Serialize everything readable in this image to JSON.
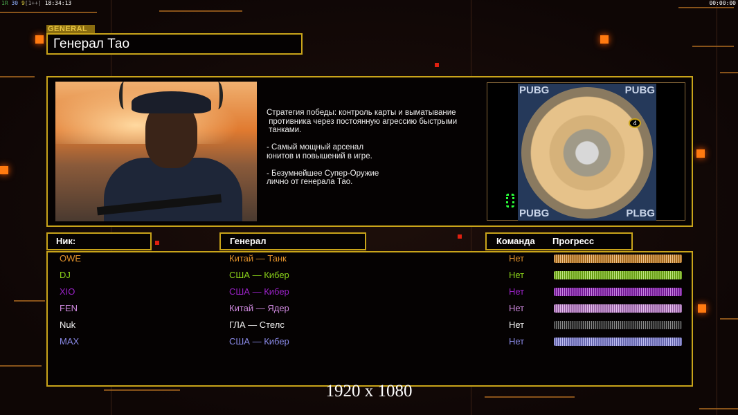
{
  "status_bar": {
    "parts": [
      {
        "text": "1R",
        "color": "#4caf50"
      },
      {
        "text": "30",
        "color": "#8fb0ff"
      },
      {
        "text": "9",
        "color": "#e0d040"
      },
      {
        "text": "[1++]",
        "color": "#999999"
      },
      {
        "text": "18:34:13",
        "color": "#ffffff"
      }
    ],
    "timer": "00:00:00"
  },
  "header": {
    "tag": "GENERAL",
    "title": "Генерал Тао"
  },
  "general": {
    "description": "Стратегия победы: контроль карты и выматывание\n противника через постоянную агрессию быстрыми\n танками.\n\n- Самый мощный арсенал\nюнитов и повышений в игре.\n\n- Безумнейшее Супер-Оружие\nлично от генерала Тао.",
    "map_labels": [
      "PUBG",
      "PUBG",
      "PUBG",
      "PLBG"
    ],
    "map_marker": "4"
  },
  "table": {
    "headers": {
      "nick": "Ник:",
      "general": "Генерал",
      "team": "Команда",
      "progress": "Прогресс"
    },
    "rows": [
      {
        "nick": "OWE",
        "general": "Китай — Танк",
        "team": "Нет",
        "progress": 100,
        "color": "#e0902a"
      },
      {
        "nick": "DJ",
        "general": "США — Кибер",
        "team": "Нет",
        "progress": 100,
        "color": "#8ad21a"
      },
      {
        "nick": "XIO",
        "general": "США — Кибер",
        "team": "Нет",
        "progress": 100,
        "color": "#9a22c8"
      },
      {
        "nick": "FEN",
        "general": "Китай — Ядер",
        "team": "Нет",
        "progress": 100,
        "color": "#d08ae0"
      },
      {
        "nick": "Nuk",
        "general": "ГЛА — Стелс",
        "team": "Нет",
        "progress": 100,
        "color": "#f0f0f0"
      },
      {
        "nick": "MAX",
        "general": "США — Кибер",
        "team": "Нет",
        "progress": 100,
        "color": "#8a8ae8"
      }
    ]
  },
  "resolution": "1920 x 1080"
}
